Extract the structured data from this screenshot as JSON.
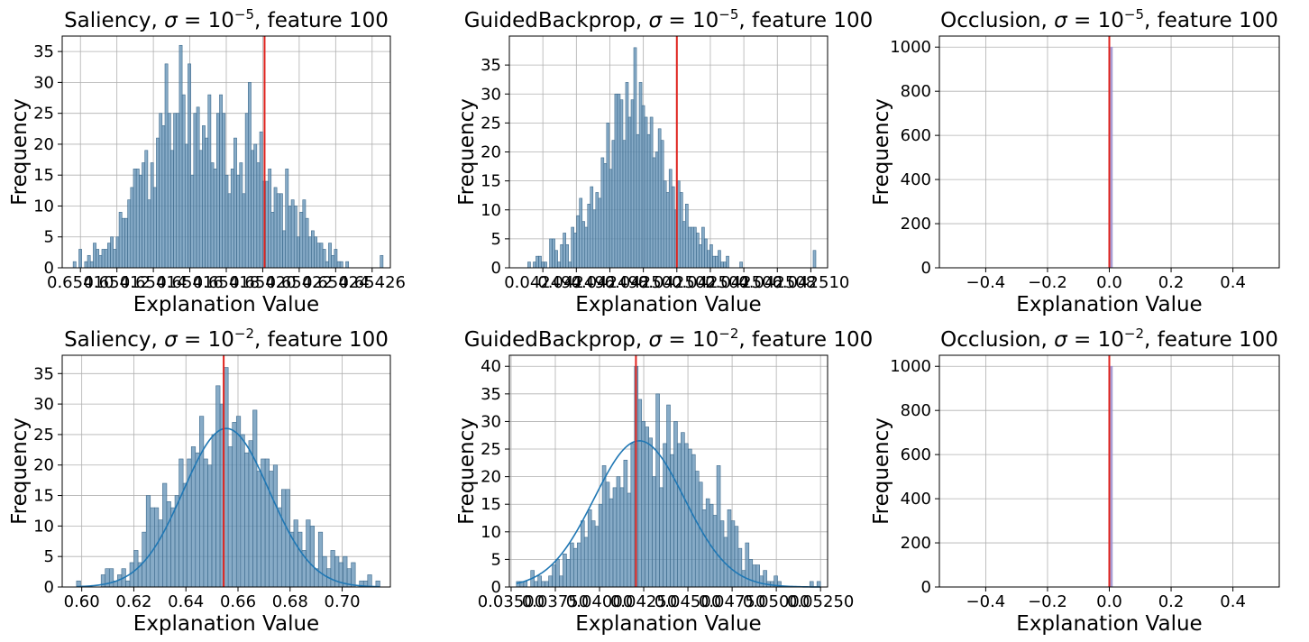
{
  "figure": {
    "rows": 2,
    "cols": 3
  },
  "colors": {
    "bar_fill": "#5f8fb4",
    "bar_stroke": "#3d6a8c",
    "kde": "#1f77b4",
    "ref_line": "#e0231e",
    "occlusion_bar": "#9b8fcf",
    "grid": "#b0b0b0"
  },
  "chart_data": [
    {
      "id": "saliency-1e-5",
      "type": "bar",
      "title": "Saliency, σ = 10⁻⁵, feature 100",
      "title_parts": [
        "Saliency, ",
        "σ",
        " = 10",
        "−5",
        ", feature 100"
      ],
      "xlabel": "Explanation Value",
      "ylabel": "Frequency",
      "xlim": [
        0.65409,
        0.65427
      ],
      "ylim": [
        0,
        37.5
      ],
      "xticks": [
        0.6541,
        0.65412,
        0.65414,
        0.65416,
        0.65418,
        0.6542,
        0.65422,
        0.65424,
        0.65426
      ],
      "xtick_labels": [
        "0.65410",
        "0.65412",
        "0.65414",
        "0.65416",
        "0.65418",
        "0.65420",
        "0.65422",
        "0.65424",
        "0.65426"
      ],
      "yticks": [
        0,
        5,
        10,
        15,
        20,
        25,
        30,
        35
      ],
      "ytick_labels": [
        "0",
        "5",
        "10",
        "15",
        "20",
        "25",
        "30",
        "35"
      ],
      "bin_start": 0.654096,
      "bin_end": 0.654266,
      "counts": [
        1,
        0,
        3,
        0,
        1,
        2,
        1,
        4,
        3,
        2,
        3,
        3,
        4,
        5,
        3,
        5,
        9,
        8,
        8,
        11,
        13,
        16,
        16,
        15,
        17,
        19,
        11,
        17,
        13,
        21,
        25,
        23,
        33,
        25,
        19,
        25,
        25,
        36,
        28,
        20,
        33,
        15,
        25,
        26,
        19,
        23,
        21,
        28,
        17,
        16,
        25,
        28,
        25,
        15,
        12,
        16,
        21,
        15,
        17,
        12,
        25,
        30,
        19,
        20,
        17,
        22,
        14,
        14,
        16,
        9,
        13,
        12,
        12,
        6,
        16,
        10,
        11,
        10,
        5,
        9,
        11,
        8,
        5,
        6,
        5,
        4,
        4,
        3,
        1,
        4,
        2,
        3,
        1,
        1,
        0,
        1,
        0,
        0,
        0,
        0,
        0,
        0,
        0,
        0,
        0,
        0,
        0,
        2
      ],
      "ref_x": 0.654201,
      "show_kde": false
    },
    {
      "id": "guidedbackprop-1e-5",
      "type": "bar",
      "title": "GuidedBackprop, σ = 10⁻⁵, feature 100",
      "title_parts": [
        "GuidedBackprop, ",
        "σ",
        " = 10",
        "−5",
        ", feature 100"
      ],
      "xlabel": "Explanation Value",
      "ylabel": "Frequency",
      "xlim": [
        0.042492,
        0.042511
      ],
      "ylim": [
        0,
        40
      ],
      "xticks": [
        0.042494,
        0.042496,
        0.042498,
        0.0425,
        0.042502,
        0.042504,
        0.042506,
        0.042508,
        0.04251
      ],
      "xtick_labels": [
        "0.042494",
        "0.042496",
        "0.042498",
        "0.042500",
        "0.042502",
        "0.042504",
        "0.042506",
        "0.042508",
        "0.042510"
      ],
      "yticks": [
        0,
        5,
        10,
        15,
        20,
        25,
        30,
        35
      ],
      "ytick_labels": [
        "0",
        "5",
        "10",
        "15",
        "20",
        "25",
        "30",
        "35"
      ],
      "bin_start": 0.0424931,
      "bin_end": 0.0425103,
      "counts": [
        1,
        0,
        1,
        2,
        2,
        1,
        1,
        0,
        5,
        5,
        3,
        1,
        4,
        6,
        4,
        1,
        7,
        6,
        9,
        12,
        8,
        7,
        11,
        14,
        10,
        13,
        12,
        19,
        18,
        25,
        17,
        22,
        30,
        30,
        29,
        22,
        32,
        26,
        29,
        38,
        23,
        32,
        28,
        26,
        23,
        26,
        19,
        20,
        24,
        22,
        15,
        13,
        17,
        14,
        10,
        15,
        13,
        8,
        11,
        7,
        7,
        7,
        6,
        4,
        7,
        5,
        3,
        4,
        2,
        2,
        3,
        1,
        1,
        2,
        0,
        0,
        0,
        0,
        1,
        0,
        0,
        0,
        0,
        0,
        0,
        0,
        0,
        0,
        0,
        0,
        0,
        0,
        0,
        0,
        0,
        0,
        0,
        0,
        0,
        0,
        0,
        0,
        0,
        0,
        0,
        3
      ],
      "ref_x": 0.042502,
      "show_kde": false
    },
    {
      "id": "occlusion-1e-5",
      "type": "bar",
      "title": "Occlusion, σ = 10⁻⁵, feature 100",
      "title_parts": [
        "Occlusion, ",
        "σ",
        " = 10",
        "−5",
        ", feature 100"
      ],
      "xlabel": "Explanation Value",
      "ylabel": "Frequency",
      "xlim": [
        -0.55,
        0.55
      ],
      "ylim": [
        0,
        1050
      ],
      "xticks": [
        -0.4,
        -0.2,
        0.0,
        0.2,
        0.4
      ],
      "xtick_labels": [
        "−0.4",
        "−0.2",
        "0.0",
        "0.2",
        "0.4"
      ],
      "yticks": [
        0,
        200,
        400,
        600,
        800,
        1000
      ],
      "ytick_labels": [
        "0",
        "200",
        "400",
        "600",
        "800",
        "1000"
      ],
      "bin_start": 0.0,
      "bin_end": 0.01,
      "counts": [
        1000
      ],
      "ref_x": 0.0,
      "show_kde": false
    },
    {
      "id": "saliency-1e-2",
      "type": "bar",
      "title": "Saliency, σ = 10⁻², feature 100",
      "title_parts": [
        "Saliency, ",
        "σ",
        " = 10",
        "−2",
        ", feature 100"
      ],
      "xlabel": "Explanation Value",
      "ylabel": "Frequency",
      "xlim": [
        0.5925,
        0.7185
      ],
      "ylim": [
        0,
        38
      ],
      "xticks": [
        0.6,
        0.62,
        0.64,
        0.66,
        0.68,
        0.7
      ],
      "xtick_labels": [
        "0.60",
        "0.62",
        "0.64",
        "0.66",
        "0.68",
        "0.70"
      ],
      "yticks": [
        0,
        5,
        10,
        15,
        20,
        25,
        30,
        35
      ],
      "ytick_labels": [
        "0",
        "5",
        "10",
        "15",
        "20",
        "25",
        "30",
        "35"
      ],
      "bin_start": 0.598,
      "bin_end": 0.7145,
      "counts": [
        1,
        0,
        0,
        0,
        0,
        0,
        2,
        3,
        3,
        1,
        2,
        3,
        1,
        4,
        6,
        4,
        9,
        15,
        13,
        13,
        11,
        17,
        14,
        13,
        15,
        21,
        17,
        21,
        23,
        22,
        28,
        21,
        20,
        25,
        33,
        30,
        36,
        23,
        27,
        28,
        25,
        22,
        24,
        29,
        19,
        21,
        21,
        19,
        20,
        13,
        16,
        16,
        9,
        11,
        9,
        6,
        11,
        10,
        3,
        9,
        5,
        3,
        6,
        5,
        4,
        5,
        3,
        4,
        0,
        1,
        1,
        2,
        0,
        1
      ],
      "ref_x": 0.6545,
      "show_kde": true,
      "kde_mean": 0.6555,
      "kde_sd": 0.0165,
      "kde_peak": 26
    },
    {
      "id": "guidedbackprop-1e-2",
      "type": "bar",
      "title": "GuidedBackprop, σ = 10⁻², feature 100",
      "title_parts": [
        "GuidedBackprop, ",
        "σ",
        " = 10",
        "−2",
        ", feature 100"
      ],
      "xlabel": "Explanation Value",
      "ylabel": "Frequency",
      "xlim": [
        0.0349,
        0.0529
      ],
      "ylim": [
        0,
        42
      ],
      "xticks": [
        0.035,
        0.0375,
        0.04,
        0.0425,
        0.045,
        0.0475,
        0.05,
        0.0525
      ],
      "xtick_labels": [
        "0.03500",
        "0.03750",
        "0.04000",
        "0.04250",
        "0.04500",
        "0.04750",
        "0.05000",
        "0.05250"
      ],
      "yticks": [
        0,
        5,
        10,
        15,
        20,
        25,
        30,
        35,
        40
      ],
      "ytick_labels": [
        "0",
        "5",
        "10",
        "15",
        "20",
        "25",
        "30",
        "35",
        "40"
      ],
      "bin_start": 0.0353,
      "bin_end": 0.0525,
      "counts": [
        1,
        1,
        1,
        0,
        3,
        1,
        2,
        1,
        1,
        2,
        4,
        5,
        2,
        6,
        5,
        8,
        7,
        8,
        12,
        9,
        14,
        12,
        11,
        15,
        22,
        19,
        16,
        18,
        20,
        18,
        23,
        17,
        26,
        40,
        34,
        30,
        29,
        27,
        20,
        35,
        18,
        26,
        33,
        24,
        30,
        26,
        28,
        26,
        25,
        24,
        21,
        19,
        14,
        16,
        15,
        13,
        22,
        12,
        9,
        14,
        12,
        11,
        7,
        3,
        8,
        5,
        4,
        4,
        2,
        3,
        1,
        1,
        2,
        1,
        0,
        0,
        0,
        0,
        0,
        0,
        0,
        0,
        1,
        0,
        1
      ],
      "ref_x": 0.04206,
      "show_kde": true,
      "kde_mean": 0.04225,
      "kde_sd": 0.00255,
      "kde_peak": 26.5
    },
    {
      "id": "occlusion-1e-2",
      "type": "bar",
      "title": "Occlusion, σ = 10⁻², feature 100",
      "title_parts": [
        "Occlusion, ",
        "σ",
        " = 10",
        "−2",
        ", feature 100"
      ],
      "xlabel": "Explanation Value",
      "ylabel": "Frequency",
      "xlim": [
        -0.55,
        0.55
      ],
      "ylim": [
        0,
        1050
      ],
      "xticks": [
        -0.4,
        -0.2,
        0.0,
        0.2,
        0.4
      ],
      "xtick_labels": [
        "−0.4",
        "−0.2",
        "0.0",
        "0.2",
        "0.4"
      ],
      "yticks": [
        0,
        200,
        400,
        600,
        800,
        1000
      ],
      "ytick_labels": [
        "0",
        "200",
        "400",
        "600",
        "800",
        "1000"
      ],
      "bin_start": 0.0,
      "bin_end": 0.01,
      "counts": [
        1000
      ],
      "ref_x": 0.0,
      "show_kde": false
    }
  ]
}
